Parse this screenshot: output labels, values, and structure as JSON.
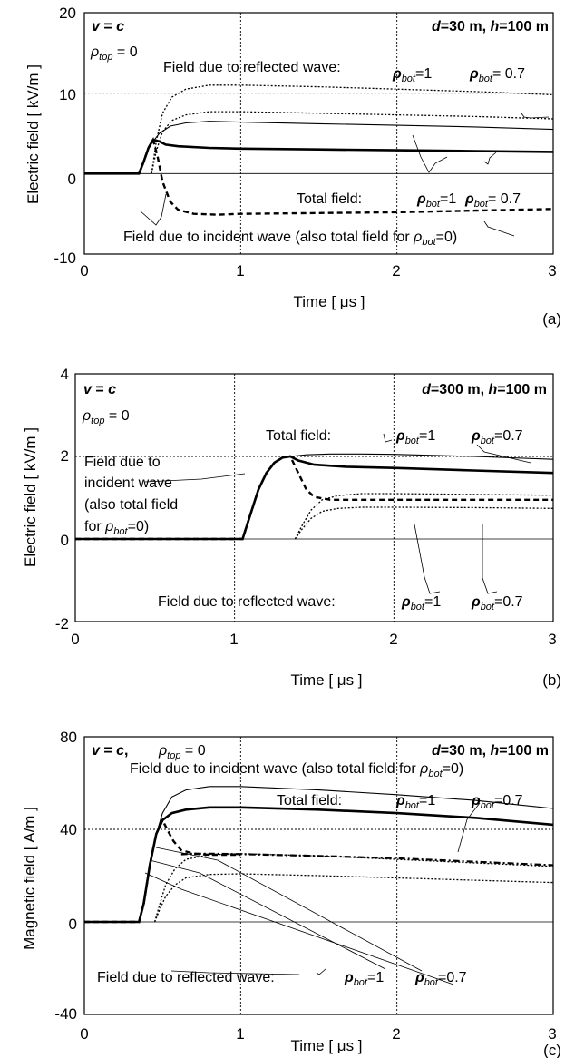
{
  "chart_data": [
    {
      "type": "line",
      "panel_label": "(a)",
      "xlabel": "Time [ μs ]",
      "ylabel": "Electric field [ kV/m ]",
      "xlim": [
        0,
        3
      ],
      "ylim": [
        -10,
        20
      ],
      "xticks": [
        "0",
        "1",
        "2",
        "3"
      ],
      "yticks": [
        "-10",
        "0",
        "10",
        "20"
      ],
      "grid": "dotted",
      "texts": {
        "v": "v",
        "v_eq": " = ",
        "c": "c",
        "rho": "ρ",
        "top_sub": "top",
        "rho_top_val": " = 0",
        "d": "d",
        "d_val": "=30 m,  ",
        "h": "h",
        "h_val": "=100 m",
        "refl_label": "Field due to reflected wave:",
        "total_label": "Total field:",
        "incident_label": "Field due to incident wave (also total field for ",
        "incident_close": "=0)",
        "bot_sub": "bot",
        "eq1": "=1",
        "eq07": "= 0.7"
      },
      "series": [
        {
          "style": "solid-thick",
          "x": [
            0,
            0.35,
            0.38,
            0.41,
            0.44,
            0.48,
            0.52,
            0.6,
            0.8,
            1.0,
            1.5,
            2.0,
            2.5,
            3.0
          ],
          "y": [
            0,
            0,
            1.5,
            3.2,
            4.2,
            4.0,
            3.6,
            3.4,
            3.2,
            3.1,
            3.0,
            2.9,
            2.8,
            2.7
          ]
        },
        {
          "style": "solid-thin",
          "x": [
            0,
            0.35,
            0.38,
            0.41,
            0.44,
            0.48,
            0.55,
            0.65,
            0.8,
            1.0,
            1.5,
            2.0,
            2.5,
            3.0
          ],
          "y": [
            0,
            0,
            1.5,
            3.2,
            4.0,
            5.0,
            5.9,
            6.3,
            6.5,
            6.4,
            6.2,
            6.0,
            5.8,
            5.5
          ]
        },
        {
          "style": "dash-thick",
          "x": [
            0,
            0.35,
            0.38,
            0.41,
            0.44,
            0.47,
            0.5,
            0.55,
            0.6,
            0.7,
            0.85,
            1.0,
            1.5,
            2.0,
            2.5,
            3.0
          ],
          "y": [
            0,
            0,
            1.5,
            3.2,
            4.2,
            2.0,
            -1.0,
            -3.5,
            -4.5,
            -5.0,
            -5.1,
            -5.0,
            -4.9,
            -4.8,
            -4.6,
            -4.4
          ]
        },
        {
          "style": "dot",
          "x": [
            0.43,
            0.46,
            0.5,
            0.56,
            0.65,
            0.8,
            1.0,
            1.5,
            2.0,
            2.5,
            3.0
          ],
          "y": [
            0,
            4.0,
            7.5,
            9.5,
            10.5,
            11.0,
            11.0,
            10.8,
            10.5,
            10.2,
            9.8
          ]
        },
        {
          "style": "dot",
          "x": [
            0.43,
            0.46,
            0.5,
            0.56,
            0.65,
            0.8,
            1.0,
            1.5,
            2.0,
            2.5,
            3.0
          ],
          "y": [
            0,
            2.8,
            5.2,
            6.6,
            7.3,
            7.7,
            7.7,
            7.5,
            7.3,
            7.1,
            6.8
          ]
        }
      ]
    },
    {
      "type": "line",
      "panel_label": "(b)",
      "xlabel": "Time [ μs ]",
      "ylabel": "Electric field [ kV/m ]",
      "xlim": [
        0,
        3
      ],
      "ylim": [
        -2,
        4
      ],
      "xticks": [
        "0",
        "1",
        "2",
        "3"
      ],
      "yticks": [
        "-2",
        "0",
        "2",
        "4"
      ],
      "grid": "dotted",
      "texts": {
        "v": "v",
        "v_eq": " = ",
        "c": "c",
        "rho": "ρ",
        "top_sub": "top",
        "rho_top_val": " =  0",
        "d": "d",
        "d_val": "=300 m,  ",
        "h": "h",
        "h_val": "=100 m",
        "total_label": "Total field:",
        "incident_l1": "Field due to",
        "incident_l2": "incident wave",
        "incident_l3": "(also total field",
        "incident_l4": " for ",
        "incident_close": "=0)",
        "refl_label": "Field due to reflected wave:",
        "bot_sub": "bot",
        "eq1": "=1",
        "eq07": "=0.7"
      },
      "series": [
        {
          "style": "solid-thick",
          "x": [
            0,
            1.05,
            1.1,
            1.15,
            1.2,
            1.25,
            1.3,
            1.35,
            1.4,
            1.5,
            1.7,
            2.0,
            2.5,
            3.0
          ],
          "y": [
            0,
            0,
            0.6,
            1.2,
            1.6,
            1.85,
            1.97,
            2.0,
            1.9,
            1.8,
            1.75,
            1.72,
            1.66,
            1.6
          ]
        },
        {
          "style": "solid-thin",
          "x": [
            0,
            1.05,
            1.1,
            1.15,
            1.2,
            1.25,
            1.3,
            1.35,
            1.45,
            1.6,
            1.8,
            2.0,
            2.5,
            3.0
          ],
          "y": [
            0,
            0,
            0.6,
            1.2,
            1.6,
            1.85,
            1.97,
            2.0,
            2.04,
            2.06,
            2.06,
            2.05,
            2.0,
            1.93
          ]
        },
        {
          "style": "dash-thick",
          "x": [
            0,
            1.05,
            1.1,
            1.15,
            1.2,
            1.25,
            1.3,
            1.35,
            1.4,
            1.45,
            1.5,
            1.6,
            1.8,
            2.0,
            2.5,
            3.0
          ],
          "y": [
            0,
            0,
            0.6,
            1.2,
            1.6,
            1.85,
            1.97,
            2.0,
            1.6,
            1.2,
            1.02,
            0.95,
            0.95,
            0.95,
            0.95,
            0.95
          ]
        },
        {
          "style": "dot",
          "x": [
            1.38,
            1.42,
            1.48,
            1.55,
            1.65,
            1.8,
            2.0,
            2.5,
            3.0
          ],
          "y": [
            0,
            0.3,
            0.7,
            0.95,
            1.05,
            1.1,
            1.1,
            1.08,
            1.06
          ]
        },
        {
          "style": "dot",
          "x": [
            1.38,
            1.42,
            1.48,
            1.55,
            1.65,
            1.8,
            2.0,
            2.5,
            3.0
          ],
          "y": [
            0,
            0.22,
            0.5,
            0.67,
            0.74,
            0.77,
            0.77,
            0.76,
            0.74
          ]
        }
      ]
    },
    {
      "type": "line",
      "panel_label": "(c)",
      "xlabel": "Time [ μs ]",
      "ylabel": "Magnetic field [ A/m ]",
      "xlim": [
        0,
        3
      ],
      "ylim": [
        -40,
        80
      ],
      "xticks": [
        "0",
        "1",
        "2",
        "3"
      ],
      "yticks": [
        "-40",
        "0",
        "40",
        "80"
      ],
      "grid": "dotted",
      "texts": {
        "v": "v",
        "v_eq": " = ",
        "c": "c",
        "comma": ",",
        "rho": "ρ",
        "top_sub": "top",
        "rho_top_val": " = 0",
        "d": "d",
        "d_val": "=30 m,  ",
        "h": "h",
        "h_val": "=100 m",
        "incident_label": "Field due to incident wave (also total field for ",
        "incident_close": "=0)",
        "total_label": "Total field:",
        "refl_label": "Field due to reflected wave:",
        "bot_sub": "bot",
        "eq1": "=1",
        "eq07": "=0.7"
      },
      "series": [
        {
          "style": "solid-thick",
          "x": [
            0,
            0.35,
            0.38,
            0.42,
            0.46,
            0.5,
            0.56,
            0.65,
            0.8,
            1.0,
            1.5,
            2.0,
            2.5,
            3.0
          ],
          "y": [
            0,
            0,
            8,
            25,
            38,
            44,
            47,
            48.5,
            49.5,
            49.5,
            48.5,
            47,
            45,
            42
          ]
        },
        {
          "style": "solid-thin",
          "x": [
            0,
            0.35,
            0.38,
            0.42,
            0.46,
            0.5,
            0.56,
            0.65,
            0.8,
            1.0,
            1.5,
            2.0,
            2.5,
            3.0
          ],
          "y": [
            0,
            0,
            8,
            25,
            38,
            47,
            54,
            57,
            58.5,
            58.5,
            57,
            55,
            52.5,
            49
          ]
        },
        {
          "style": "dash-thick",
          "x": [
            0,
            0.35,
            0.38,
            0.42,
            0.46,
            0.5,
            0.53,
            0.57,
            0.62,
            0.7,
            0.8,
            1.0
          ],
          "y": [
            0,
            0,
            8,
            25,
            38,
            44,
            40,
            35,
            31,
            29.5,
            29,
            29
          ]
        },
        {
          "style": "dashdot-thick",
          "x": [
            0.62,
            0.7,
            0.8,
            1.0,
            1.5,
            2.0,
            2.5,
            3.0
          ],
          "y": [
            29.2,
            29.5,
            29.5,
            29.3,
            28.5,
            27.5,
            26,
            24.5
          ]
        },
        {
          "style": "dot",
          "x": [
            0.45,
            0.48,
            0.52,
            0.58,
            0.65,
            0.8,
            1.0,
            1.5,
            2.0,
            2.5,
            3.0
          ],
          "y": [
            0,
            7,
            16,
            23,
            27,
            29,
            29.5,
            28.5,
            27,
            25.5,
            24
          ]
        },
        {
          "style": "dot",
          "x": [
            0.45,
            0.48,
            0.52,
            0.58,
            0.65,
            0.8,
            1.0,
            1.5,
            2.0,
            2.5,
            3.0
          ],
          "y": [
            0,
            5,
            11,
            16,
            19,
            20.5,
            20.8,
            20,
            19,
            18,
            17
          ]
        }
      ]
    }
  ]
}
